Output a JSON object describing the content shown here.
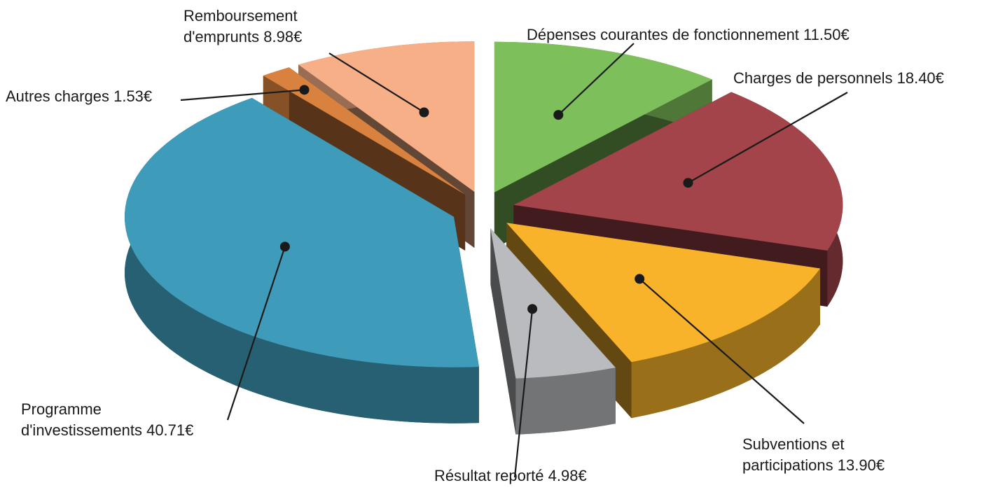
{
  "chart_data": {
    "type": "pie3d",
    "categories": [
      "Dépenses courantes de fonctionnement",
      "Charges de personnels",
      "Subventions et participations",
      "Résultat reporté",
      "Programme d'investissements",
      "Autres charges",
      "Remboursement d'emprunts"
    ],
    "values": [
      11.5,
      18.4,
      13.9,
      4.98,
      40.71,
      1.53,
      8.98
    ],
    "value_labels": [
      "11.50€",
      "18.40€",
      "13.90€",
      "4.98€",
      "40.71€",
      "1.53€",
      "8.98€"
    ],
    "colors": [
      "#7dc05b",
      "#a3444a",
      "#f8b32a",
      "#b9bbbf",
      "#3f9bba",
      "#d9823f",
      "#f6af86"
    ]
  }
}
